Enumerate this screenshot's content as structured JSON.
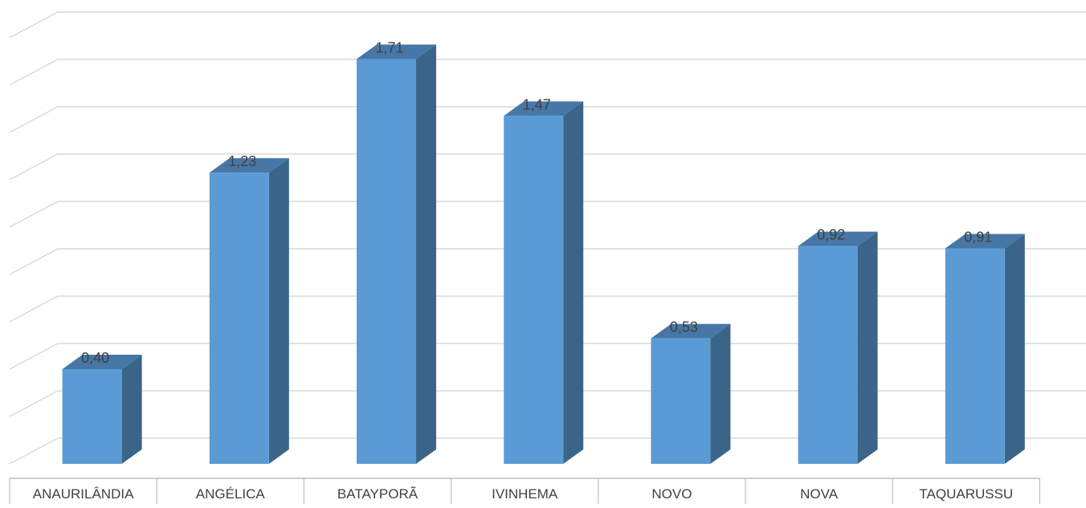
{
  "chart_data": {
    "type": "bar",
    "style": "3d-column",
    "categories": [
      "ANAURILÂNDIA",
      "ANGÉLICA",
      "BATAYPORÃ",
      "IVINHEMA",
      "NOVO",
      "NOVA",
      "TAQUARUSSU"
    ],
    "values": [
      0.4,
      1.23,
      1.71,
      1.47,
      0.53,
      0.92,
      0.91
    ],
    "data_labels": [
      "0,40",
      "1,23",
      "1,71",
      "1,47",
      "0,53",
      "0,92",
      "0,91"
    ],
    "ylim": [
      0,
      1.8
    ],
    "grid": true,
    "legend": "none",
    "colors": {
      "bar_front": "#5b9bd5",
      "bar_side": "#3a6589",
      "bar_top": "#4677a6",
      "grid": "#d9d9d9",
      "text": "#404040"
    }
  }
}
